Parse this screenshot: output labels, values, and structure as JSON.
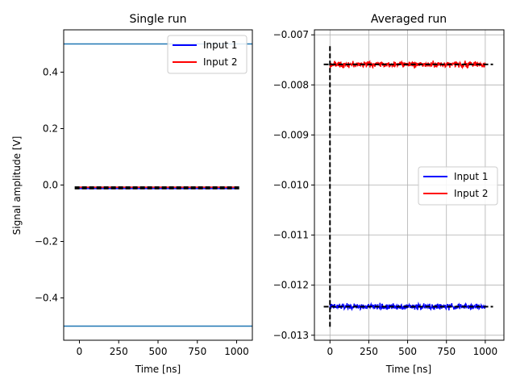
{
  "chart_data": [
    {
      "type": "line",
      "title": "Single run",
      "xlabel": "Time [ns]",
      "ylabel": "Signal amplitude [V]",
      "xlim": [
        -100,
        1100
      ],
      "ylim": [
        -0.55,
        0.55
      ],
      "xticks": [
        0,
        250,
        500,
        750,
        1000
      ],
      "xtick_labels": [
        "0",
        "250",
        "500",
        "750",
        "1000"
      ],
      "yticks": [
        -0.4,
        -0.2,
        0.0,
        0.2,
        0.4
      ],
      "ytick_labels": [
        "−0.4",
        "−0.2",
        "0.0",
        "0.2",
        "0.4"
      ],
      "grid": false,
      "legend_position": "upper right",
      "series": [
        {
          "name": "Input 1",
          "color": "#0000ff",
          "x_range": [
            0,
            1000
          ],
          "mean": -0.0124,
          "noise": 6e-05
        },
        {
          "name": "Input 2",
          "color": "#ff0000",
          "x_range": [
            0,
            1000
          ],
          "mean": -0.0076,
          "noise": 6e-05
        }
      ],
      "hlines": [
        {
          "y": 0.5,
          "color": "#1f77b4"
        },
        {
          "y": -0.5,
          "color": "#1f77b4"
        },
        {
          "y": -0.0124,
          "color": "#000000",
          "dashed": true,
          "x_range": [
            -30,
            1030
          ]
        },
        {
          "y": -0.0076,
          "color": "#000000",
          "dashed": true,
          "x_range": [
            -30,
            1030
          ]
        }
      ]
    },
    {
      "type": "line",
      "title": "Averaged run",
      "xlabel": "Time [ns]",
      "ylabel": "",
      "xlim": [
        -100,
        1120
      ],
      "ylim": [
        -0.0131,
        -0.0069
      ],
      "xticks": [
        0,
        250,
        500,
        750,
        1000
      ],
      "xtick_labels": [
        "0",
        "250",
        "500",
        "750",
        "1000"
      ],
      "yticks": [
        -0.013,
        -0.012,
        -0.011,
        -0.01,
        -0.009,
        -0.008,
        -0.007
      ],
      "ytick_labels": [
        "−0.013",
        "−0.012",
        "−0.011",
        "−0.010",
        "−0.009",
        "−0.008",
        "−0.007"
      ],
      "grid": true,
      "legend_position": "center right",
      "series": [
        {
          "name": "Input 1",
          "color": "#0000ff",
          "x_range": [
            0,
            1000
          ],
          "mean": -0.01243,
          "noise": 4e-05
        },
        {
          "name": "Input 2",
          "color": "#ff0000",
          "x_range": [
            0,
            1000
          ],
          "mean": -0.00759,
          "noise": 4e-05
        }
      ],
      "hlines": [
        {
          "y": -0.01243,
          "color": "#000000",
          "dashed": true,
          "x_range": [
            -40,
            1050
          ]
        },
        {
          "y": -0.00759,
          "color": "#000000",
          "dashed": true,
          "x_range": [
            -40,
            1050
          ]
        }
      ],
      "vlines": [
        {
          "x": 0,
          "color": "#000000",
          "dashed": true,
          "y_range": [
            -0.01283,
            -0.0072
          ]
        }
      ]
    }
  ]
}
